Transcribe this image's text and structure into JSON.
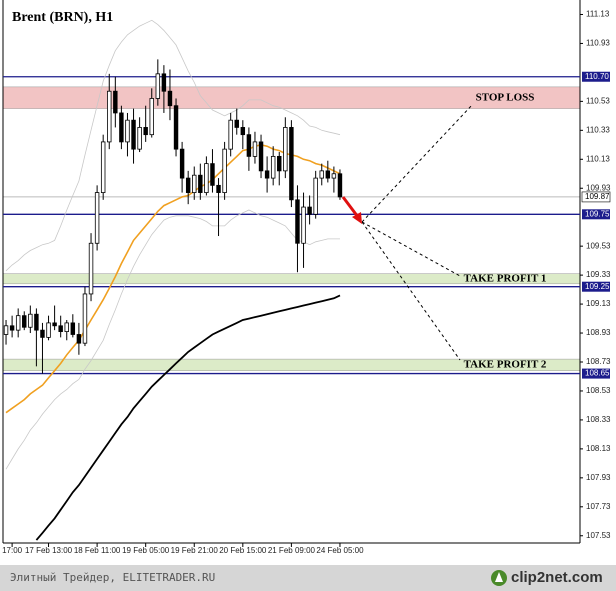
{
  "chart_data": {
    "type": "candlestick",
    "title": "Brent (BRN), H1",
    "categories": [
      null,
      "17:00",
      null,
      null,
      null,
      null,
      null,
      "17 Feb 13:00",
      null,
      null,
      null,
      null,
      null,
      null,
      null,
      "18 Feb 11:00",
      null,
      null,
      null,
      null,
      null,
      null,
      null,
      "19 Feb 05:00",
      null,
      null,
      null,
      null,
      null,
      null,
      null,
      "19 Feb 21:00",
      null,
      null,
      null,
      null,
      null,
      null,
      null,
      "20 Feb 15:00",
      null,
      null,
      null,
      null,
      null,
      null,
      null,
      "21 Feb 09:00",
      null,
      null,
      null,
      null,
      null,
      null,
      null,
      "24 Feb 05:00"
    ],
    "open": [
      108.92,
      108.98,
      108.95,
      109.05,
      108.97,
      109.06,
      108.95,
      108.9,
      109.0,
      108.98,
      108.94,
      109.0,
      108.92,
      108.86,
      109.2,
      109.55,
      109.9,
      110.25,
      110.6,
      110.45,
      110.25,
      110.4,
      110.2,
      110.35,
      110.3,
      110.55,
      110.72,
      110.6,
      110.5,
      110.2,
      110.0,
      109.9,
      110.02,
      109.9,
      110.1,
      109.95,
      109.9,
      110.2,
      110.4,
      110.35,
      110.3,
      110.15,
      110.25,
      110.05,
      110.0,
      110.15,
      110.05,
      110.35,
      109.85,
      109.55,
      109.8,
      109.75,
      110.0,
      110.05,
      110.0,
      110.03
    ],
    "high": [
      109.02,
      109.05,
      109.1,
      109.08,
      109.12,
      109.1,
      109.0,
      109.05,
      109.12,
      109.05,
      109.02,
      109.06,
      109.0,
      109.25,
      109.62,
      109.95,
      110.3,
      110.72,
      110.7,
      110.5,
      110.45,
      110.48,
      110.42,
      110.5,
      110.62,
      110.82,
      110.78,
      110.75,
      110.55,
      110.25,
      110.05,
      110.08,
      110.1,
      110.15,
      110.2,
      110.0,
      110.25,
      110.45,
      110.48,
      110.4,
      110.35,
      110.32,
      110.3,
      110.15,
      110.22,
      110.18,
      110.42,
      110.4,
      109.95,
      109.9,
      109.88,
      110.05,
      110.1,
      110.12,
      110.08,
      110.06
    ],
    "low": [
      108.85,
      108.9,
      108.9,
      108.95,
      108.93,
      108.7,
      108.65,
      108.88,
      108.95,
      108.9,
      108.88,
      108.9,
      108.78,
      108.84,
      109.15,
      109.5,
      109.85,
      110.2,
      110.35,
      110.2,
      110.15,
      110.1,
      110.18,
      110.25,
      110.28,
      110.5,
      110.45,
      110.4,
      110.15,
      109.9,
      109.82,
      109.85,
      109.85,
      109.88,
      109.9,
      109.6,
      109.85,
      110.15,
      110.3,
      110.2,
      110.05,
      110.1,
      110.0,
      109.9,
      109.95,
      109.95,
      110.0,
      109.8,
      109.35,
      109.38,
      109.68,
      109.72,
      109.95,
      109.97,
      109.9,
      109.85
    ],
    "close": [
      108.98,
      108.95,
      109.05,
      108.97,
      109.06,
      108.95,
      108.9,
      109.0,
      108.98,
      108.94,
      109.0,
      108.92,
      108.86,
      109.2,
      109.55,
      109.9,
      110.25,
      110.6,
      110.45,
      110.25,
      110.4,
      110.2,
      110.35,
      110.3,
      110.55,
      110.72,
      110.6,
      110.5,
      110.2,
      110.0,
      109.9,
      110.02,
      109.9,
      110.1,
      109.95,
      109.9,
      110.2,
      110.4,
      110.35,
      110.3,
      110.15,
      110.25,
      110.05,
      110.0,
      110.15,
      110.05,
      110.35,
      109.85,
      109.55,
      109.8,
      109.75,
      110.0,
      110.05,
      110.0,
      110.03,
      109.87
    ],
    "overlays": [
      {
        "color": "#c8c8c8",
        "values": [
          109.36,
          109.4,
          109.43,
          109.47,
          109.5,
          109.52,
          109.54,
          109.55,
          109.57,
          109.67,
          109.78,
          109.88,
          109.98,
          110.16,
          110.33,
          110.5,
          110.67,
          110.78,
          110.88,
          110.94,
          110.99,
          111.02,
          111.05,
          111.07,
          111.09,
          111.06,
          111.02,
          110.97,
          110.92,
          110.83,
          110.74,
          110.66,
          110.57,
          110.52,
          110.47,
          110.45,
          110.43,
          110.45,
          110.47,
          110.5,
          110.54,
          110.54,
          110.54,
          110.52,
          110.5,
          110.49,
          110.47,
          110.45,
          110.43,
          110.4,
          110.36,
          110.35,
          110.33,
          110.32,
          110.31,
          110.3
        ]
      },
      {
        "color": "#c8c8c8",
        "values": [
          107.99,
          108.06,
          108.13,
          108.19,
          108.26,
          108.31,
          108.37,
          108.42,
          108.47,
          108.51,
          108.54,
          108.58,
          108.61,
          108.68,
          108.74,
          108.81,
          108.88,
          108.99,
          109.09,
          109.2,
          109.3,
          109.39,
          109.47,
          109.54,
          109.61,
          109.66,
          109.71,
          109.73,
          109.74,
          109.74,
          109.74,
          109.73,
          109.72,
          109.7,
          109.67,
          109.67,
          109.67,
          109.71,
          109.74,
          109.76,
          109.78,
          109.76,
          109.74,
          109.73,
          109.71,
          109.69,
          109.67,
          109.62,
          109.57,
          109.56,
          109.54,
          109.56,
          109.57,
          109.58,
          109.58,
          109.58
        ]
      },
      {
        "color": "#f0a020",
        "values": [
          108.38,
          108.41,
          108.44,
          108.47,
          108.51,
          108.54,
          108.57,
          108.62,
          108.67,
          108.72,
          108.78,
          108.83,
          108.88,
          108.95,
          109.02,
          109.09,
          109.16,
          109.24,
          109.32,
          109.41,
          109.49,
          109.57,
          109.62,
          109.67,
          109.72,
          109.77,
          109.81,
          109.83,
          109.85,
          109.87,
          109.88,
          109.91,
          109.94,
          109.96,
          109.99,
          110.03,
          110.07,
          110.11,
          110.15,
          110.19,
          110.2,
          110.22,
          110.23,
          110.22,
          110.2,
          110.19,
          110.17,
          110.16,
          110.15,
          110.13,
          110.12,
          110.1,
          110.09,
          110.07,
          110.05,
          110.03
        ]
      },
      {
        "color": "#000000",
        "values": [
          null,
          null,
          null,
          null,
          null,
          107.5,
          107.55,
          107.6,
          107.65,
          107.71,
          107.77,
          107.83,
          107.88,
          107.94,
          108.0,
          108.06,
          108.12,
          108.18,
          108.24,
          108.3,
          108.35,
          108.41,
          108.46,
          108.51,
          108.56,
          108.6,
          108.64,
          108.68,
          108.72,
          108.76,
          108.8,
          108.83,
          108.86,
          108.89,
          108.92,
          108.94,
          108.96,
          108.98,
          109.0,
          109.02,
          109.03,
          109.04,
          109.05,
          109.06,
          109.07,
          109.08,
          109.09,
          109.1,
          109.11,
          109.12,
          109.13,
          109.14,
          109.15,
          109.16,
          109.17,
          109.19
        ]
      }
    ],
    "zones": [
      {
        "range": [
          110.48,
          110.63
        ],
        "color": "#f2c4c4",
        "label": "STOP LOSS"
      },
      {
        "range": [
          109.27,
          109.34
        ],
        "color": "#dcebc8",
        "label": "TAKE PROFIT 1"
      },
      {
        "range": [
          108.67,
          108.75
        ],
        "color": "#dcebc8",
        "label": "TAKE PROFIT 2"
      }
    ],
    "levels": [
      {
        "value": 110.7,
        "label": "110.70"
      },
      109.75,
      109.25,
      108.65
    ],
    "level_color": "#1c1c8c",
    "last_price": 109.87,
    "ylim": [
      107.48,
      111.23
    ],
    "yticks": [
      111.13,
      110.93,
      110.53,
      110.33,
      110.13,
      109.93,
      109.53,
      109.33,
      109.13,
      108.93,
      108.73,
      108.53,
      108.33,
      108.13,
      107.93,
      107.73,
      107.53
    ]
  },
  "footer": {
    "source": "Элитный Трейдер, ELITETRADER.RU",
    "logo": "clip2net.com"
  }
}
